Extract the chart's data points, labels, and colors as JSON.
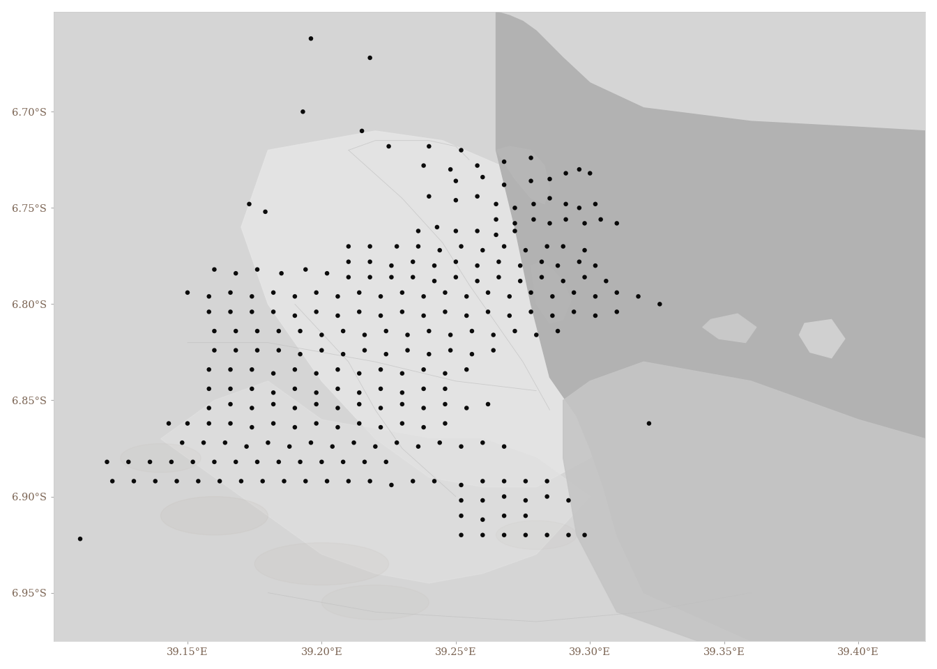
{
  "xlim": [
    39.1,
    39.425
  ],
  "ylim": [
    -6.975,
    -6.648
  ],
  "xticks": [
    39.15,
    39.2,
    39.25,
    39.3,
    39.35,
    39.4
  ],
  "yticks": [
    -6.7,
    -6.75,
    -6.8,
    -6.85,
    -6.9,
    -6.95
  ],
  "background_color": "#ffffff",
  "panel_border_color": "#cccccc",
  "tick_color": "#7a6352",
  "tick_fontsize": 10.5,
  "point_color": "#000000",
  "point_size": 22,
  "land_light": "#e8e8e8",
  "land_mid": "#d5d5d5",
  "land_dark": "#c8c8c8",
  "water_color": "#b0b0b0",
  "water_dark": "#a0a0a0",
  "hospitals": [
    [
      39.196,
      -6.662
    ],
    [
      39.218,
      -6.672
    ],
    [
      39.193,
      -6.7
    ],
    [
      39.215,
      -6.71
    ],
    [
      39.225,
      -6.718
    ],
    [
      39.24,
      -6.718
    ],
    [
      39.252,
      -6.72
    ],
    [
      39.238,
      -6.728
    ],
    [
      39.248,
      -6.73
    ],
    [
      39.258,
      -6.728
    ],
    [
      39.268,
      -6.726
    ],
    [
      39.278,
      -6.724
    ],
    [
      39.25,
      -6.736
    ],
    [
      39.26,
      -6.734
    ],
    [
      39.268,
      -6.738
    ],
    [
      39.278,
      -6.736
    ],
    [
      39.285,
      -6.735
    ],
    [
      39.291,
      -6.732
    ],
    [
      39.296,
      -6.73
    ],
    [
      39.3,
      -6.732
    ],
    [
      39.173,
      -6.748
    ],
    [
      39.179,
      -6.752
    ],
    [
      39.24,
      -6.744
    ],
    [
      39.25,
      -6.746
    ],
    [
      39.258,
      -6.744
    ],
    [
      39.265,
      -6.748
    ],
    [
      39.272,
      -6.75
    ],
    [
      39.279,
      -6.748
    ],
    [
      39.285,
      -6.745
    ],
    [
      39.291,
      -6.748
    ],
    [
      39.296,
      -6.75
    ],
    [
      39.302,
      -6.748
    ],
    [
      39.265,
      -6.756
    ],
    [
      39.272,
      -6.758
    ],
    [
      39.279,
      -6.756
    ],
    [
      39.285,
      -6.758
    ],
    [
      39.291,
      -6.756
    ],
    [
      39.298,
      -6.758
    ],
    [
      39.304,
      -6.756
    ],
    [
      39.31,
      -6.758
    ],
    [
      39.236,
      -6.762
    ],
    [
      39.243,
      -6.76
    ],
    [
      39.25,
      -6.762
    ],
    [
      39.258,
      -6.762
    ],
    [
      39.265,
      -6.764
    ],
    [
      39.272,
      -6.762
    ],
    [
      39.21,
      -6.77
    ],
    [
      39.218,
      -6.77
    ],
    [
      39.228,
      -6.77
    ],
    [
      39.236,
      -6.77
    ],
    [
      39.244,
      -6.772
    ],
    [
      39.252,
      -6.77
    ],
    [
      39.26,
      -6.772
    ],
    [
      39.268,
      -6.77
    ],
    [
      39.276,
      -6.772
    ],
    [
      39.284,
      -6.77
    ],
    [
      39.29,
      -6.77
    ],
    [
      39.298,
      -6.772
    ],
    [
      39.21,
      -6.778
    ],
    [
      39.218,
      -6.778
    ],
    [
      39.226,
      -6.78
    ],
    [
      39.234,
      -6.778
    ],
    [
      39.242,
      -6.78
    ],
    [
      39.25,
      -6.778
    ],
    [
      39.258,
      -6.78
    ],
    [
      39.266,
      -6.778
    ],
    [
      39.274,
      -6.78
    ],
    [
      39.282,
      -6.778
    ],
    [
      39.288,
      -6.78
    ],
    [
      39.296,
      -6.778
    ],
    [
      39.302,
      -6.78
    ],
    [
      39.16,
      -6.782
    ],
    [
      39.168,
      -6.784
    ],
    [
      39.176,
      -6.782
    ],
    [
      39.185,
      -6.784
    ],
    [
      39.194,
      -6.782
    ],
    [
      39.202,
      -6.784
    ],
    [
      39.21,
      -6.786
    ],
    [
      39.218,
      -6.786
    ],
    [
      39.226,
      -6.786
    ],
    [
      39.234,
      -6.786
    ],
    [
      39.242,
      -6.788
    ],
    [
      39.25,
      -6.786
    ],
    [
      39.258,
      -6.788
    ],
    [
      39.266,
      -6.786
    ],
    [
      39.274,
      -6.788
    ],
    [
      39.282,
      -6.786
    ],
    [
      39.29,
      -6.788
    ],
    [
      39.298,
      -6.786
    ],
    [
      39.306,
      -6.788
    ],
    [
      39.15,
      -6.794
    ],
    [
      39.158,
      -6.796
    ],
    [
      39.166,
      -6.794
    ],
    [
      39.174,
      -6.796
    ],
    [
      39.182,
      -6.794
    ],
    [
      39.19,
      -6.796
    ],
    [
      39.198,
      -6.794
    ],
    [
      39.206,
      -6.796
    ],
    [
      39.214,
      -6.794
    ],
    [
      39.222,
      -6.796
    ],
    [
      39.23,
      -6.794
    ],
    [
      39.238,
      -6.796
    ],
    [
      39.246,
      -6.794
    ],
    [
      39.254,
      -6.796
    ],
    [
      39.262,
      -6.794
    ],
    [
      39.27,
      -6.796
    ],
    [
      39.278,
      -6.794
    ],
    [
      39.286,
      -6.796
    ],
    [
      39.294,
      -6.794
    ],
    [
      39.302,
      -6.796
    ],
    [
      39.31,
      -6.794
    ],
    [
      39.318,
      -6.796
    ],
    [
      39.326,
      -6.8
    ],
    [
      39.158,
      -6.804
    ],
    [
      39.166,
      -6.804
    ],
    [
      39.174,
      -6.804
    ],
    [
      39.182,
      -6.804
    ],
    [
      39.19,
      -6.806
    ],
    [
      39.198,
      -6.804
    ],
    [
      39.206,
      -6.806
    ],
    [
      39.214,
      -6.804
    ],
    [
      39.222,
      -6.806
    ],
    [
      39.23,
      -6.804
    ],
    [
      39.238,
      -6.806
    ],
    [
      39.246,
      -6.804
    ],
    [
      39.254,
      -6.806
    ],
    [
      39.262,
      -6.804
    ],
    [
      39.27,
      -6.806
    ],
    [
      39.278,
      -6.804
    ],
    [
      39.286,
      -6.806
    ],
    [
      39.294,
      -6.804
    ],
    [
      39.302,
      -6.806
    ],
    [
      39.31,
      -6.804
    ],
    [
      39.16,
      -6.814
    ],
    [
      39.168,
      -6.814
    ],
    [
      39.176,
      -6.814
    ],
    [
      39.184,
      -6.814
    ],
    [
      39.192,
      -6.814
    ],
    [
      39.2,
      -6.816
    ],
    [
      39.208,
      -6.814
    ],
    [
      39.216,
      -6.816
    ],
    [
      39.224,
      -6.814
    ],
    [
      39.232,
      -6.816
    ],
    [
      39.24,
      -6.814
    ],
    [
      39.248,
      -6.816
    ],
    [
      39.256,
      -6.814
    ],
    [
      39.264,
      -6.816
    ],
    [
      39.272,
      -6.814
    ],
    [
      39.28,
      -6.816
    ],
    [
      39.288,
      -6.814
    ],
    [
      39.16,
      -6.824
    ],
    [
      39.168,
      -6.824
    ],
    [
      39.176,
      -6.824
    ],
    [
      39.184,
      -6.824
    ],
    [
      39.192,
      -6.826
    ],
    [
      39.2,
      -6.824
    ],
    [
      39.208,
      -6.826
    ],
    [
      39.216,
      -6.824
    ],
    [
      39.224,
      -6.826
    ],
    [
      39.232,
      -6.824
    ],
    [
      39.24,
      -6.826
    ],
    [
      39.248,
      -6.824
    ],
    [
      39.256,
      -6.826
    ],
    [
      39.264,
      -6.824
    ],
    [
      39.158,
      -6.834
    ],
    [
      39.166,
      -6.834
    ],
    [
      39.174,
      -6.834
    ],
    [
      39.182,
      -6.836
    ],
    [
      39.19,
      -6.834
    ],
    [
      39.198,
      -6.836
    ],
    [
      39.206,
      -6.834
    ],
    [
      39.214,
      -6.836
    ],
    [
      39.222,
      -6.834
    ],
    [
      39.23,
      -6.836
    ],
    [
      39.238,
      -6.834
    ],
    [
      39.246,
      -6.836
    ],
    [
      39.254,
      -6.834
    ],
    [
      39.158,
      -6.844
    ],
    [
      39.166,
      -6.844
    ],
    [
      39.174,
      -6.844
    ],
    [
      39.182,
      -6.846
    ],
    [
      39.19,
      -6.844
    ],
    [
      39.198,
      -6.846
    ],
    [
      39.206,
      -6.844
    ],
    [
      39.214,
      -6.846
    ],
    [
      39.222,
      -6.844
    ],
    [
      39.23,
      -6.846
    ],
    [
      39.238,
      -6.844
    ],
    [
      39.246,
      -6.844
    ],
    [
      39.158,
      -6.854
    ],
    [
      39.166,
      -6.852
    ],
    [
      39.174,
      -6.854
    ],
    [
      39.182,
      -6.852
    ],
    [
      39.19,
      -6.854
    ],
    [
      39.198,
      -6.852
    ],
    [
      39.206,
      -6.854
    ],
    [
      39.214,
      -6.852
    ],
    [
      39.222,
      -6.854
    ],
    [
      39.23,
      -6.852
    ],
    [
      39.238,
      -6.854
    ],
    [
      39.246,
      -6.852
    ],
    [
      39.254,
      -6.854
    ],
    [
      39.262,
      -6.852
    ],
    [
      39.143,
      -6.862
    ],
    [
      39.15,
      -6.862
    ],
    [
      39.158,
      -6.862
    ],
    [
      39.166,
      -6.862
    ],
    [
      39.174,
      -6.864
    ],
    [
      39.182,
      -6.862
    ],
    [
      39.19,
      -6.864
    ],
    [
      39.198,
      -6.862
    ],
    [
      39.206,
      -6.864
    ],
    [
      39.214,
      -6.862
    ],
    [
      39.222,
      -6.864
    ],
    [
      39.23,
      -6.862
    ],
    [
      39.238,
      -6.864
    ],
    [
      39.246,
      -6.862
    ],
    [
      39.322,
      -6.862
    ],
    [
      39.148,
      -6.872
    ],
    [
      39.156,
      -6.872
    ],
    [
      39.164,
      -6.872
    ],
    [
      39.172,
      -6.874
    ],
    [
      39.18,
      -6.872
    ],
    [
      39.188,
      -6.874
    ],
    [
      39.196,
      -6.872
    ],
    [
      39.204,
      -6.874
    ],
    [
      39.212,
      -6.872
    ],
    [
      39.22,
      -6.874
    ],
    [
      39.228,
      -6.872
    ],
    [
      39.236,
      -6.874
    ],
    [
      39.244,
      -6.872
    ],
    [
      39.252,
      -6.874
    ],
    [
      39.26,
      -6.872
    ],
    [
      39.268,
      -6.874
    ],
    [
      39.12,
      -6.882
    ],
    [
      39.128,
      -6.882
    ],
    [
      39.136,
      -6.882
    ],
    [
      39.144,
      -6.882
    ],
    [
      39.152,
      -6.882
    ],
    [
      39.16,
      -6.882
    ],
    [
      39.168,
      -6.882
    ],
    [
      39.176,
      -6.882
    ],
    [
      39.184,
      -6.882
    ],
    [
      39.192,
      -6.882
    ],
    [
      39.2,
      -6.882
    ],
    [
      39.208,
      -6.882
    ],
    [
      39.216,
      -6.882
    ],
    [
      39.224,
      -6.882
    ],
    [
      39.122,
      -6.892
    ],
    [
      39.13,
      -6.892
    ],
    [
      39.138,
      -6.892
    ],
    [
      39.146,
      -6.892
    ],
    [
      39.154,
      -6.892
    ],
    [
      39.162,
      -6.892
    ],
    [
      39.17,
      -6.892
    ],
    [
      39.178,
      -6.892
    ],
    [
      39.186,
      -6.892
    ],
    [
      39.194,
      -6.892
    ],
    [
      39.202,
      -6.892
    ],
    [
      39.21,
      -6.892
    ],
    [
      39.218,
      -6.892
    ],
    [
      39.226,
      -6.894
    ],
    [
      39.234,
      -6.892
    ],
    [
      39.242,
      -6.892
    ],
    [
      39.252,
      -6.894
    ],
    [
      39.26,
      -6.892
    ],
    [
      39.268,
      -6.892
    ],
    [
      39.276,
      -6.892
    ],
    [
      39.284,
      -6.892
    ],
    [
      39.252,
      -6.902
    ],
    [
      39.26,
      -6.902
    ],
    [
      39.268,
      -6.9
    ],
    [
      39.276,
      -6.902
    ],
    [
      39.284,
      -6.9
    ],
    [
      39.292,
      -6.902
    ],
    [
      39.252,
      -6.91
    ],
    [
      39.26,
      -6.912
    ],
    [
      39.268,
      -6.91
    ],
    [
      39.276,
      -6.91
    ],
    [
      39.11,
      -6.922
    ],
    [
      39.252,
      -6.92
    ],
    [
      39.26,
      -6.92
    ],
    [
      39.268,
      -6.92
    ],
    [
      39.276,
      -6.92
    ],
    [
      39.284,
      -6.92
    ],
    [
      39.292,
      -6.92
    ],
    [
      39.298,
      -6.92
    ]
  ]
}
